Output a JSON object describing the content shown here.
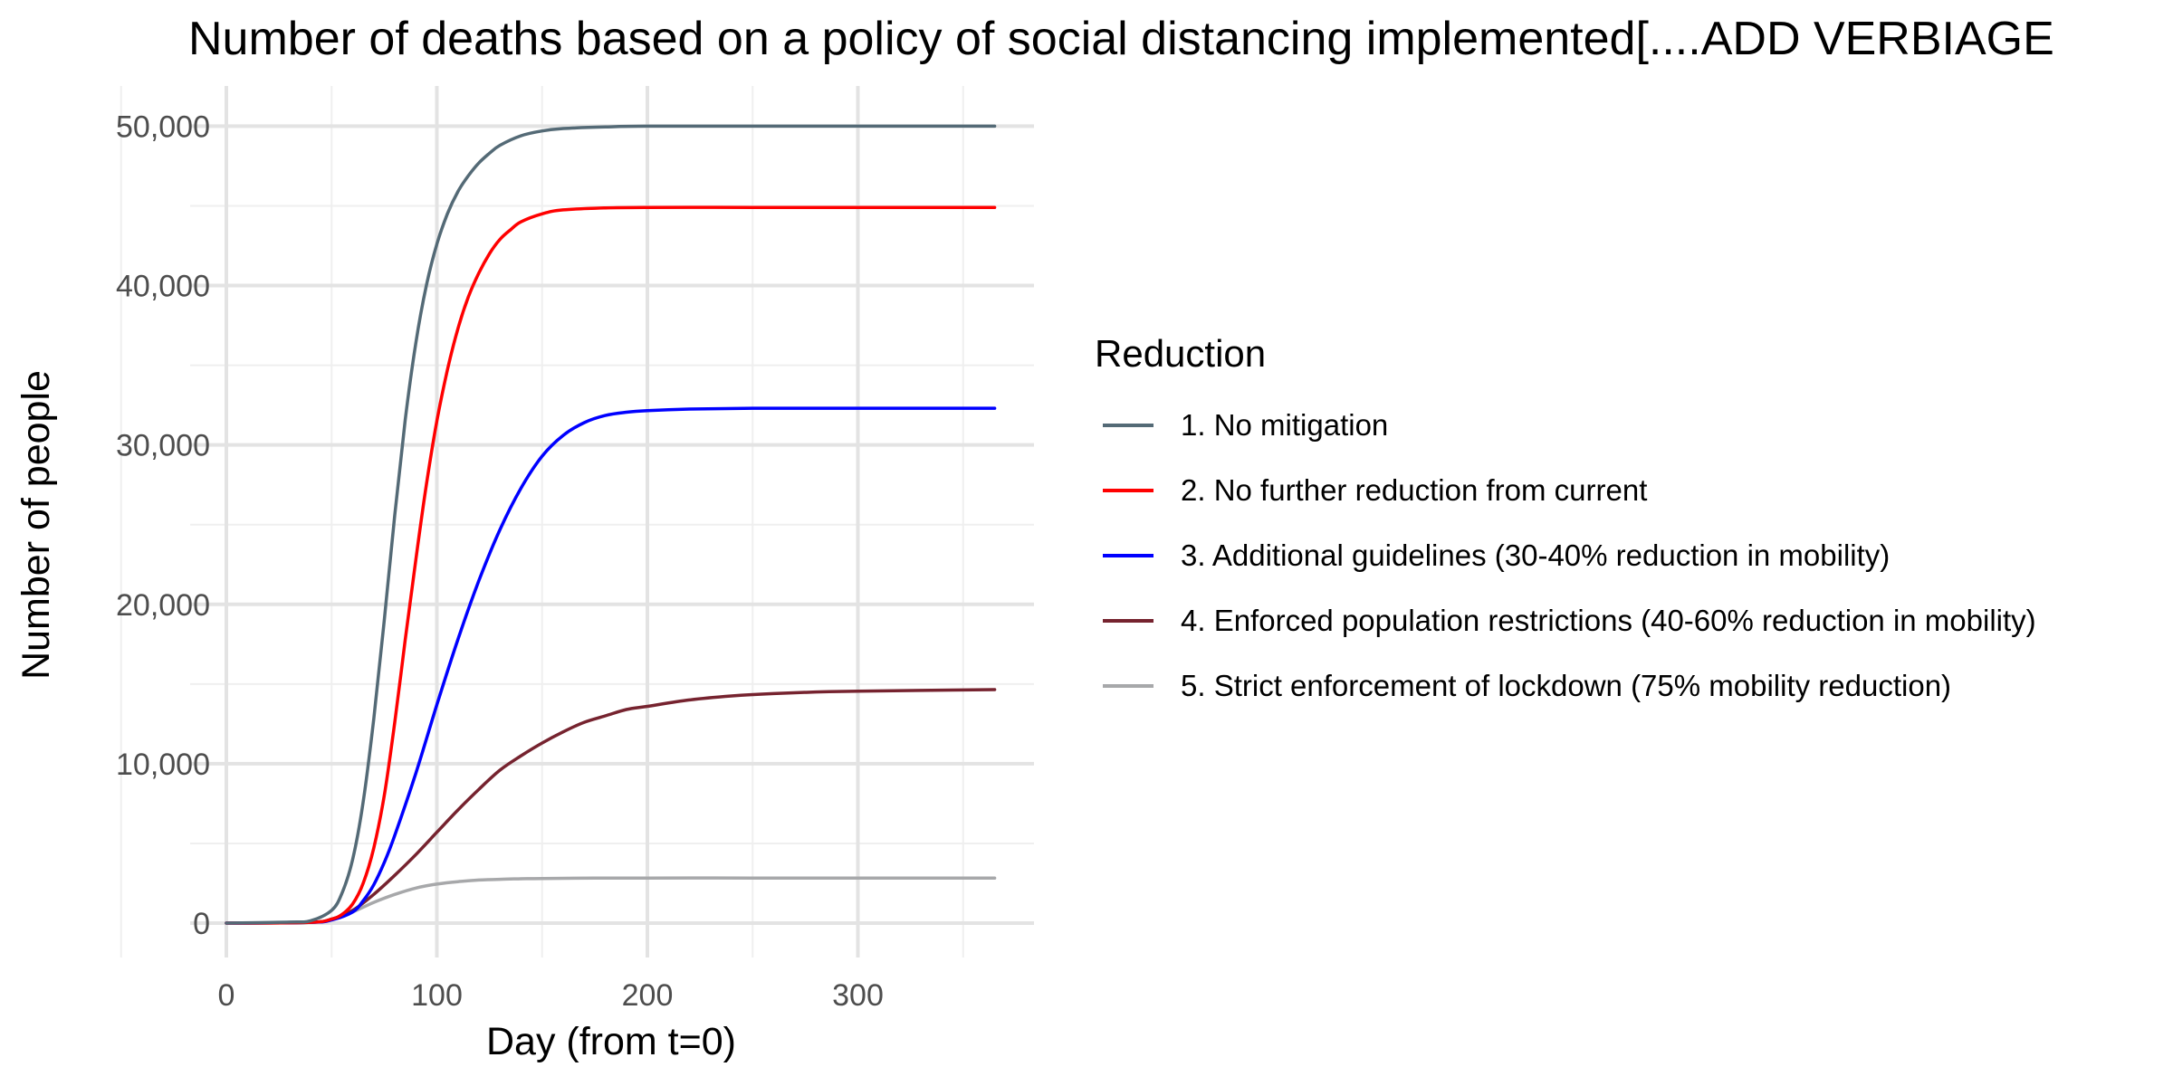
{
  "chart_data": {
    "type": "line",
    "title": "Number of deaths based on a policy of social distancing implemented[....ADD VERBIAGE",
    "xlabel": "Day (from t=0)",
    "ylabel": "Number of people",
    "xlim": [
      0,
      365
    ],
    "ylim": [
      0,
      50000
    ],
    "x_ticks": [
      0,
      100,
      200,
      300
    ],
    "x_tick_labels": [
      "0",
      "100",
      "200",
      "300"
    ],
    "y_ticks": [
      0,
      10000,
      20000,
      30000,
      40000,
      50000
    ],
    "y_tick_labels": [
      "0",
      "10,000",
      "20,000",
      "30,000",
      "40,000",
      "50,000"
    ],
    "grid": true,
    "legend": {
      "title": "Reduction",
      "placement": "right"
    },
    "series": [
      {
        "name": "1. No mitigation",
        "color": "#546a76",
        "x": [
          0,
          30,
          40,
          50,
          55,
          60,
          65,
          70,
          75,
          80,
          85,
          90,
          95,
          100,
          105,
          110,
          115,
          120,
          125,
          130,
          140,
          150,
          160,
          180,
          200,
          250,
          300,
          365
        ],
        "y": [
          0,
          60,
          150,
          800,
          1900,
          4000,
          7600,
          12800,
          19000,
          25600,
          31600,
          36400,
          40000,
          42600,
          44500,
          45900,
          46900,
          47700,
          48300,
          48800,
          49400,
          49700,
          49850,
          49950,
          50000,
          50000,
          50000,
          50000
        ]
      },
      {
        "name": "2. No further reduction from current",
        "color": "#ff0000",
        "x": [
          0,
          40,
          50,
          55,
          60,
          65,
          70,
          75,
          80,
          85,
          90,
          95,
          100,
          105,
          110,
          115,
          120,
          125,
          130,
          135,
          140,
          150,
          160,
          180,
          200,
          250,
          300,
          365
        ],
        "y": [
          0,
          50,
          250,
          550,
          1200,
          2500,
          4700,
          8000,
          12600,
          17800,
          22800,
          27500,
          31500,
          34700,
          37300,
          39300,
          40800,
          42000,
          42900,
          43500,
          44000,
          44500,
          44750,
          44870,
          44900,
          44900,
          44900,
          44900
        ]
      },
      {
        "name": "3. Additional guidelines (30-40% reduction in mobility)",
        "color": "#0000ff",
        "x": [
          0,
          40,
          50,
          60,
          65,
          70,
          75,
          80,
          90,
          100,
          110,
          120,
          130,
          140,
          150,
          160,
          170,
          180,
          190,
          200,
          220,
          250,
          300,
          365
        ],
        "y": [
          0,
          50,
          200,
          700,
          1400,
          2400,
          3800,
          5500,
          9400,
          13700,
          17800,
          21500,
          24700,
          27300,
          29300,
          30600,
          31400,
          31850,
          32050,
          32150,
          32250,
          32300,
          32300,
          32300
        ]
      },
      {
        "name": "4. Enforced population restrictions (40-60% reduction in mobility)",
        "color": "#76232f",
        "x": [
          0,
          40,
          50,
          60,
          70,
          80,
          90,
          100,
          110,
          120,
          130,
          140,
          150,
          160,
          170,
          180,
          190,
          200,
          220,
          240,
          260,
          280,
          300,
          330,
          365
        ],
        "y": [
          0,
          50,
          250,
          800,
          1800,
          3000,
          4300,
          5700,
          7100,
          8400,
          9600,
          10500,
          11300,
          12000,
          12600,
          13000,
          13400,
          13600,
          14000,
          14250,
          14400,
          14500,
          14550,
          14600,
          14650
        ]
      },
      {
        "name": "5. Strict enforcement of lockdown (75% mobility reduction)",
        "color": "#a7a8aa",
        "x": [
          0,
          40,
          50,
          60,
          70,
          80,
          90,
          100,
          110,
          120,
          130,
          140,
          150,
          175,
          200,
          250,
          300,
          365
        ],
        "y": [
          0,
          50,
          250,
          700,
          1300,
          1800,
          2200,
          2450,
          2600,
          2700,
          2750,
          2780,
          2800,
          2820,
          2830,
          2830,
          2830,
          2830
        ]
      }
    ]
  }
}
